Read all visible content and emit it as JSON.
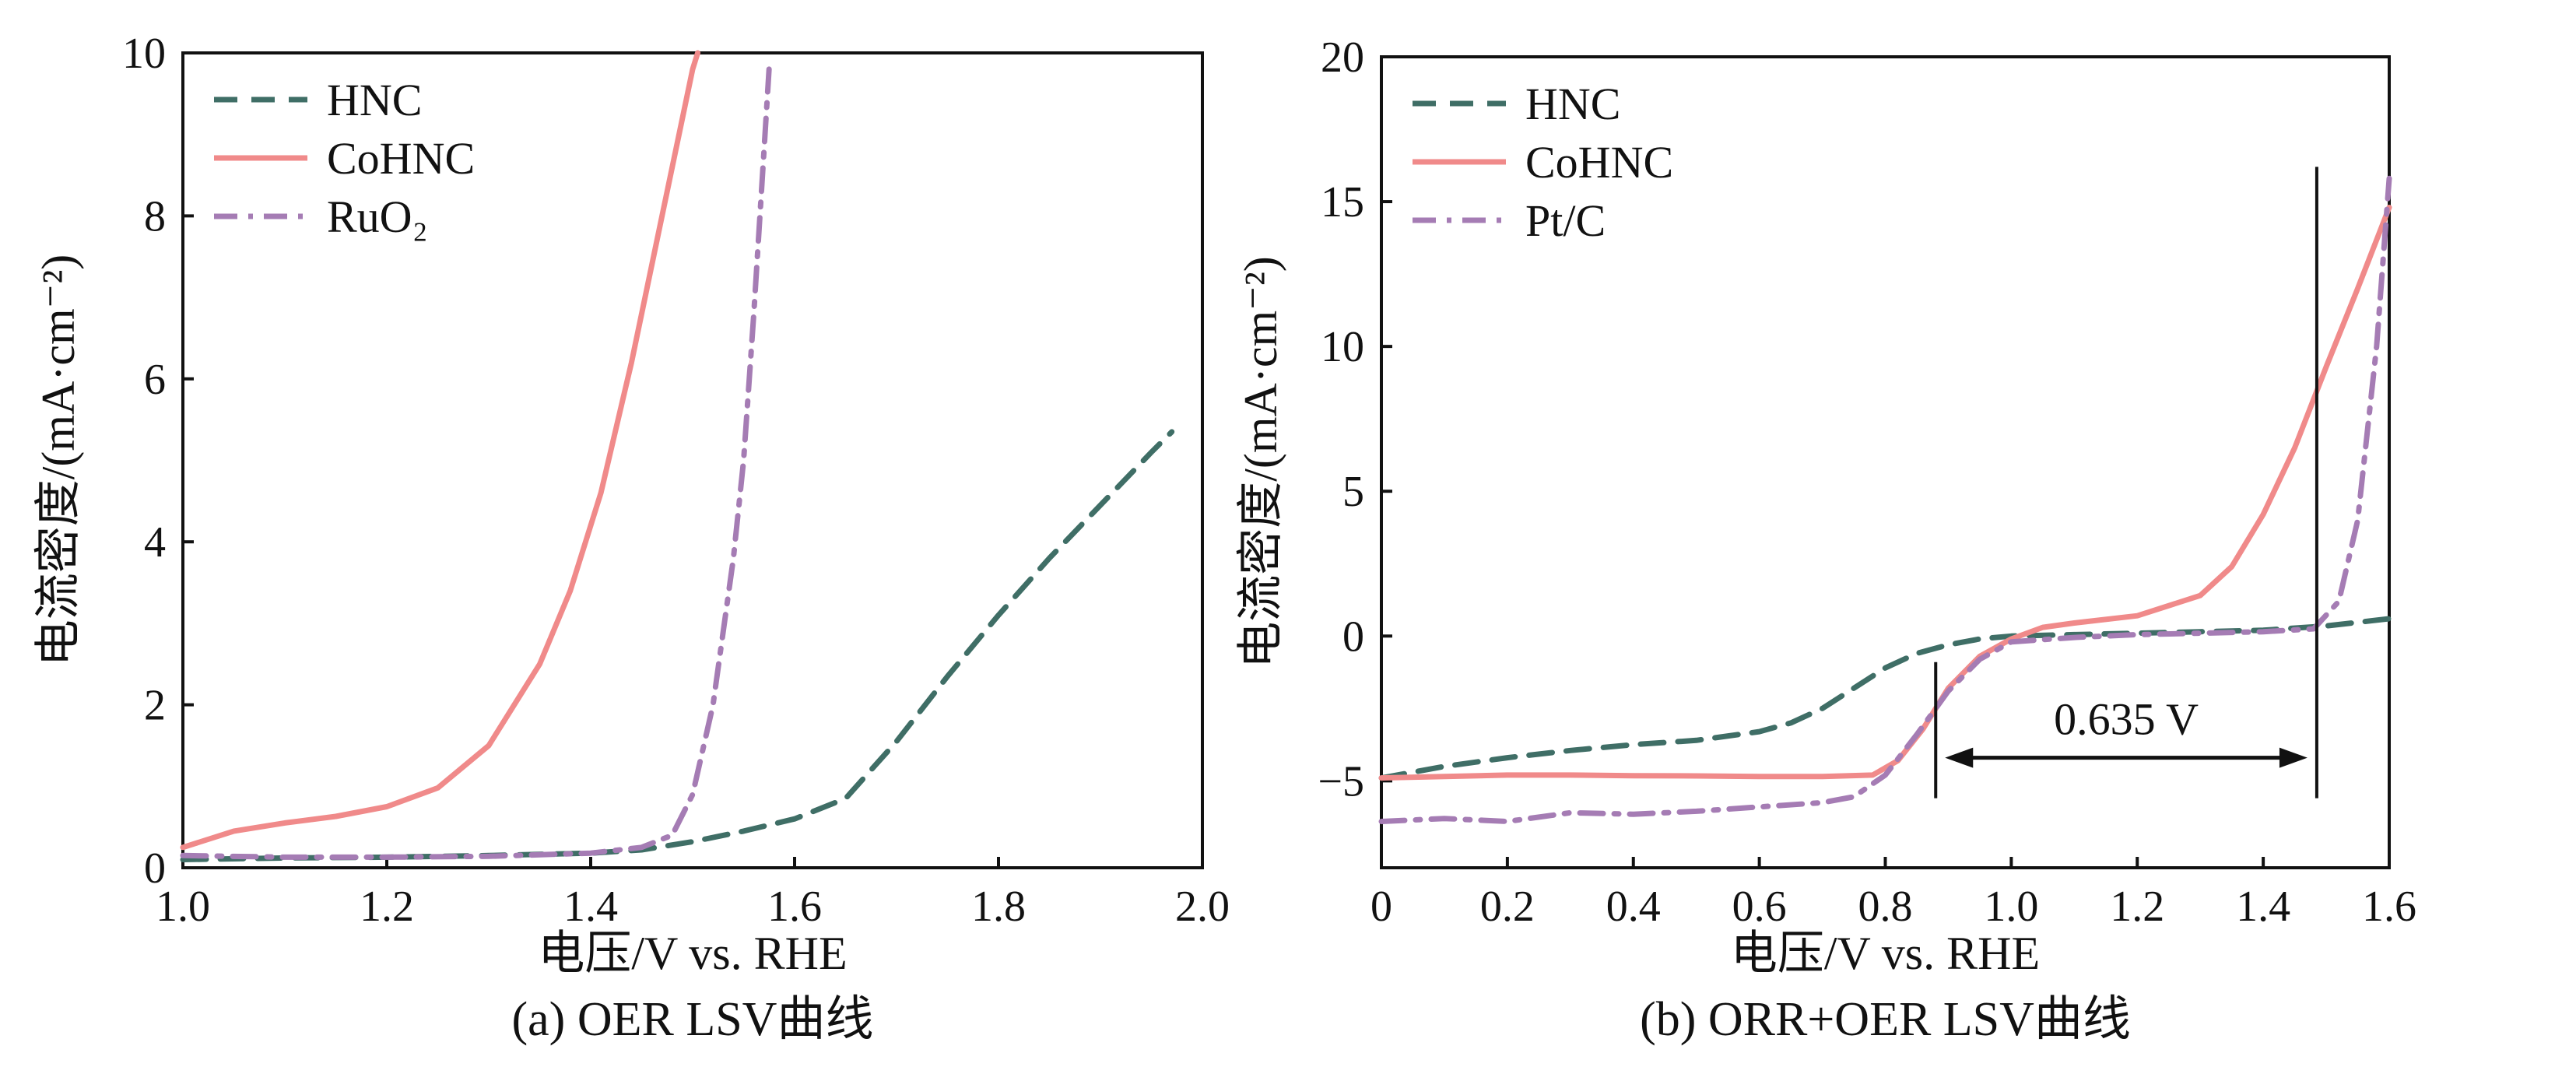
{
  "chart_data": [
    {
      "type": "line",
      "caption": "(a) OER LSV曲线",
      "xlabel": "电压/V vs. RHE",
      "ylabel": "电流密度/(mA·cm⁻²)",
      "xlim": [
        1.0,
        2.0
      ],
      "ylim": [
        0,
        10
      ],
      "xticks": [
        1.0,
        1.2,
        1.4,
        1.6,
        1.8,
        2.0
      ],
      "xtick_labels": [
        "1.0",
        "1.2",
        "1.4",
        "1.6",
        "1.8",
        "2.0"
      ],
      "yticks": [
        0,
        2,
        4,
        6,
        8,
        10
      ],
      "ytick_labels": [
        "0",
        "2",
        "4",
        "6",
        "8",
        "10"
      ],
      "grid": false,
      "legend_position": "top-left",
      "series": [
        {
          "name": "HNC",
          "color": "#3f6e66",
          "dash": "dash",
          "x": [
            1.0,
            1.1,
            1.2,
            1.3,
            1.4,
            1.45,
            1.5,
            1.55,
            1.6,
            1.65,
            1.7,
            1.75,
            1.8,
            1.85,
            1.9,
            1.95,
            1.97
          ],
          "y": [
            0.1,
            0.12,
            0.13,
            0.15,
            0.18,
            0.22,
            0.32,
            0.45,
            0.6,
            0.85,
            1.55,
            2.35,
            3.1,
            3.8,
            4.45,
            5.1,
            5.35
          ]
        },
        {
          "name": "CoHNC",
          "color": "#f08a8a",
          "dash": "solid",
          "x": [
            1.0,
            1.05,
            1.1,
            1.15,
            1.2,
            1.25,
            1.3,
            1.35,
            1.38,
            1.41,
            1.44,
            1.47,
            1.5,
            1.505
          ],
          "y": [
            0.25,
            0.45,
            0.55,
            0.63,
            0.75,
            0.98,
            1.5,
            2.5,
            3.4,
            4.6,
            6.2,
            8.0,
            9.8,
            10.0
          ]
        },
        {
          "name": "RuO₂",
          "color": "#a57cb4",
          "dash": "dashdot",
          "x": [
            1.0,
            1.1,
            1.2,
            1.3,
            1.4,
            1.45,
            1.48,
            1.5,
            1.52,
            1.54,
            1.55,
            1.56,
            1.57,
            1.575
          ],
          "y": [
            0.15,
            0.13,
            0.13,
            0.14,
            0.18,
            0.25,
            0.4,
            0.9,
            2.0,
            3.8,
            5.0,
            6.8,
            8.8,
            9.8
          ]
        }
      ]
    },
    {
      "type": "line",
      "caption": "(b) ORR+OER LSV曲线",
      "xlabel": "电压/V vs. RHE",
      "ylabel": "电流密度/(mA·cm⁻²)",
      "xlim": [
        0,
        1.6
      ],
      "ylim": [
        -8,
        20
      ],
      "xticks": [
        0,
        0.2,
        0.4,
        0.6,
        0.8,
        1.0,
        1.2,
        1.4,
        1.6
      ],
      "xtick_labels": [
        "0",
        "0.2",
        "0.4",
        "0.6",
        "0.8",
        "1.0",
        "1.2",
        "1.4",
        "1.6"
      ],
      "yticks": [
        -5,
        0,
        5,
        10,
        15,
        20
      ],
      "ytick_labels": [
        "−5",
        "0",
        "5",
        "10",
        "15",
        "20"
      ],
      "grid": false,
      "legend_position": "top-left",
      "annotation": {
        "text": "0.635 V",
        "x_start": 0.88,
        "x_end": 1.485,
        "arrow_y": -4.2,
        "line_y_range": [
          -5.6,
          16.2
        ]
      },
      "series": [
        {
          "name": "HNC",
          "color": "#3f6e66",
          "dash": "dash",
          "x": [
            0,
            0.1,
            0.2,
            0.3,
            0.4,
            0.5,
            0.6,
            0.65,
            0.7,
            0.75,
            0.8,
            0.85,
            0.9,
            0.95,
            1.0,
            1.1,
            1.2,
            1.3,
            1.4,
            1.5,
            1.6
          ],
          "y": [
            -4.9,
            -4.5,
            -4.2,
            -3.95,
            -3.75,
            -3.6,
            -3.3,
            -3.0,
            -2.5,
            -1.8,
            -1.1,
            -0.6,
            -0.3,
            -0.1,
            0.0,
            0.05,
            0.1,
            0.15,
            0.2,
            0.35,
            0.6
          ]
        },
        {
          "name": "CoHNC",
          "color": "#f08a8a",
          "dash": "solid",
          "x": [
            0,
            0.1,
            0.2,
            0.3,
            0.4,
            0.5,
            0.6,
            0.7,
            0.78,
            0.82,
            0.86,
            0.9,
            0.95,
            1.0,
            1.05,
            1.1,
            1.2,
            1.3,
            1.35,
            1.4,
            1.45,
            1.5,
            1.55,
            1.6
          ],
          "y": [
            -4.9,
            -4.85,
            -4.8,
            -4.8,
            -4.82,
            -4.83,
            -4.85,
            -4.85,
            -4.8,
            -4.3,
            -3.2,
            -1.8,
            -0.7,
            -0.1,
            0.3,
            0.45,
            0.7,
            1.4,
            2.4,
            4.2,
            6.5,
            9.3,
            12.0,
            14.8
          ]
        },
        {
          "name": "Pt/C",
          "color": "#a57cb4",
          "dash": "dashdot",
          "x": [
            0,
            0.1,
            0.2,
            0.3,
            0.4,
            0.5,
            0.6,
            0.7,
            0.75,
            0.8,
            0.85,
            0.9,
            0.95,
            1.0,
            1.1,
            1.2,
            1.3,
            1.4,
            1.48,
            1.52,
            1.55,
            1.58,
            1.6
          ],
          "y": [
            -6.4,
            -6.3,
            -6.4,
            -6.1,
            -6.15,
            -6.05,
            -5.9,
            -5.75,
            -5.55,
            -4.8,
            -3.4,
            -1.9,
            -0.8,
            -0.2,
            -0.05,
            0.05,
            0.1,
            0.15,
            0.25,
            1.2,
            4.0,
            10.0,
            15.8
          ]
        }
      ]
    }
  ]
}
